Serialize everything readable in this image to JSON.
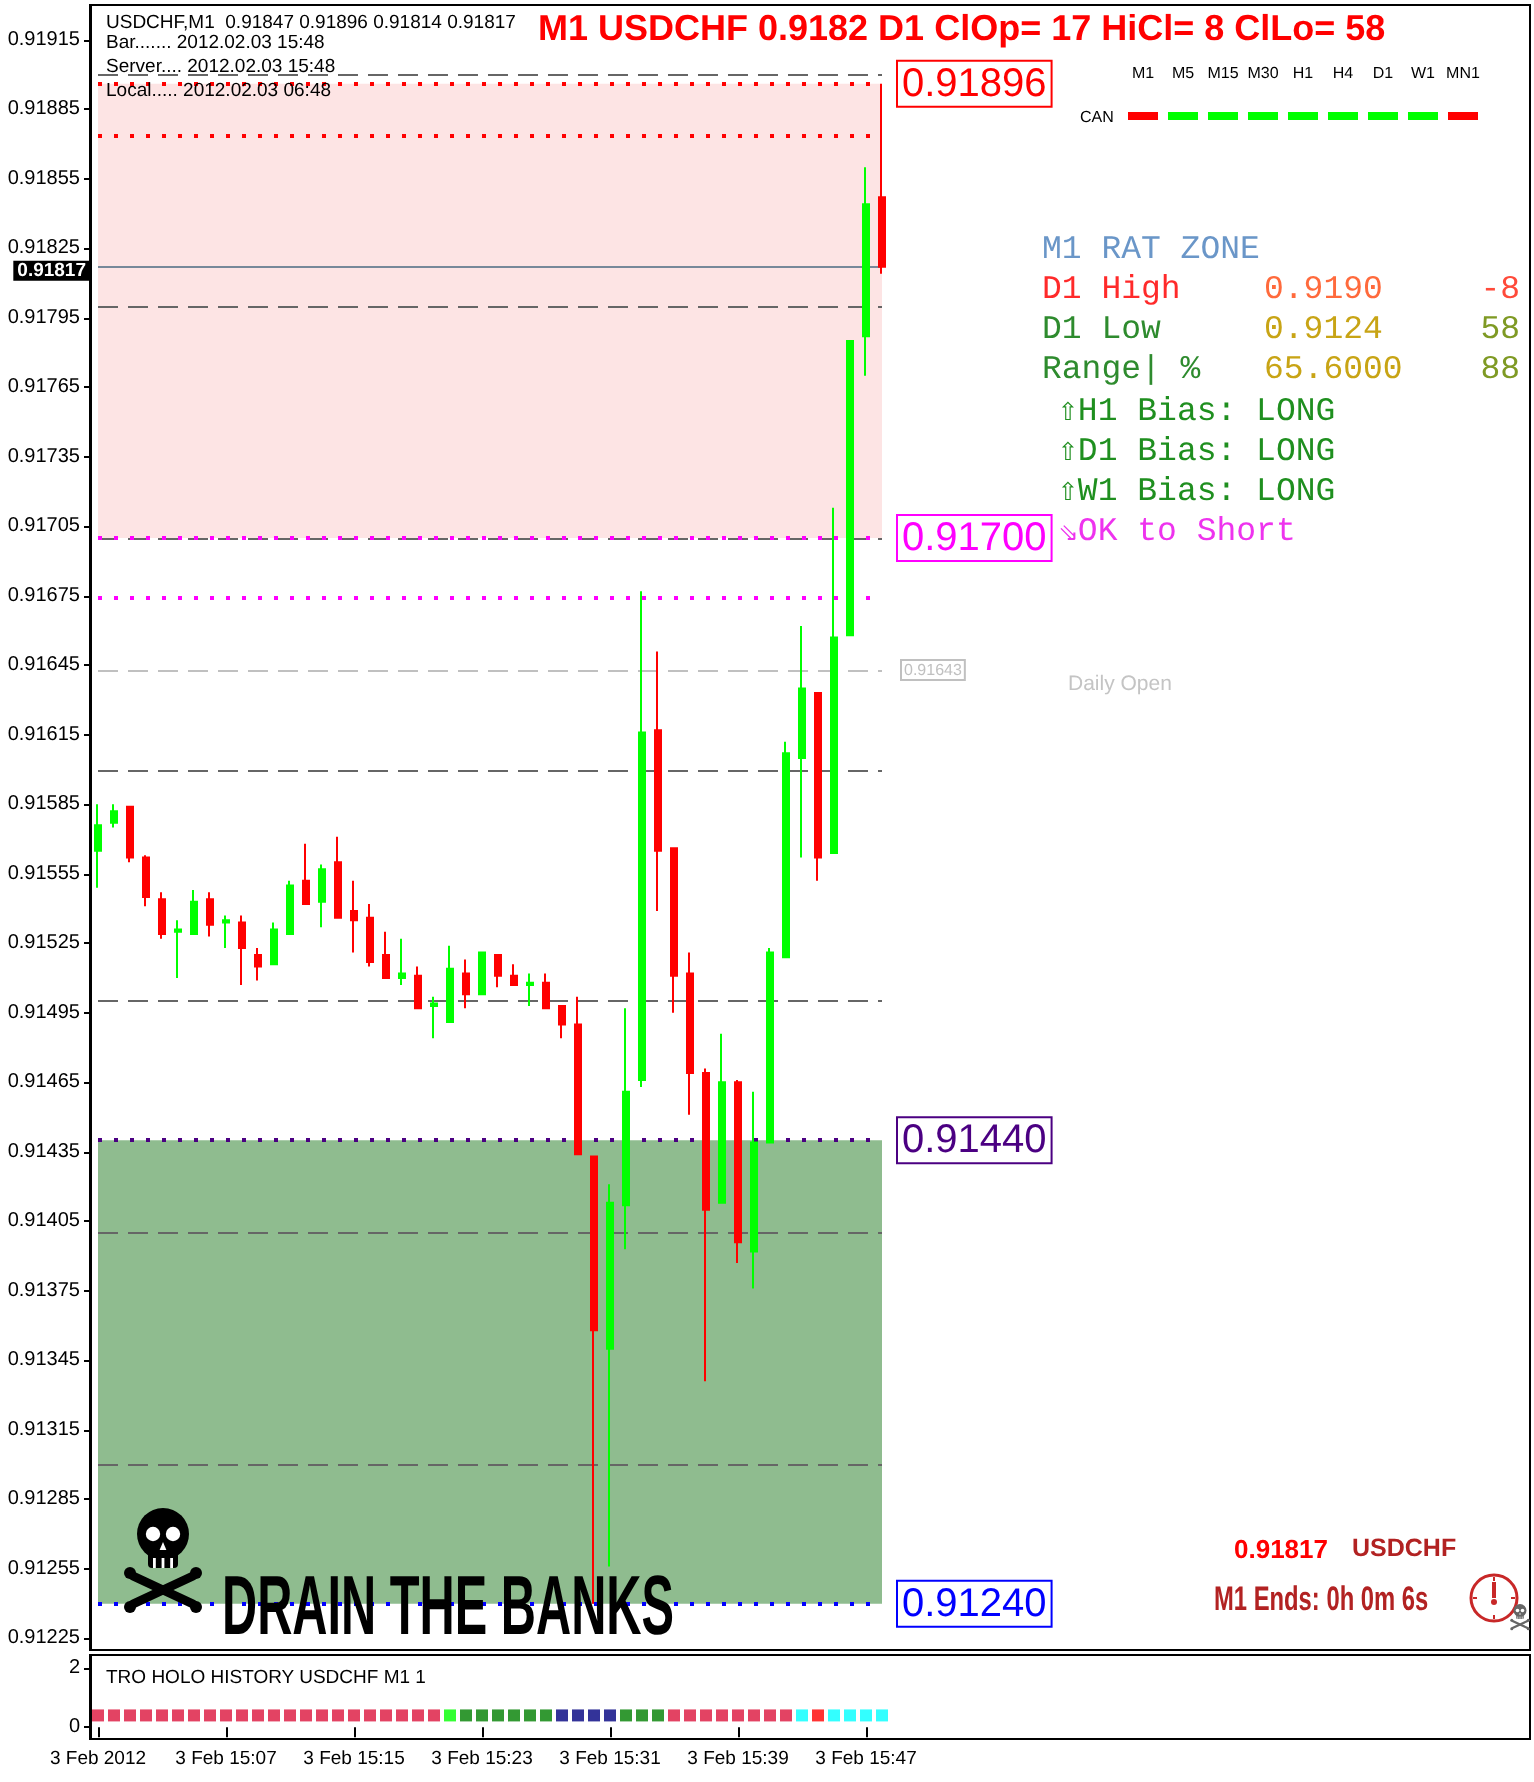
{
  "chart_data": [
    {
      "type": "candlestick",
      "title": "M1 USDCHF 0.9182 D1 ClOp= 17 HiCl= 8 ClLo= 58",
      "categories": [
        null,
        null,
        null,
        null,
        null,
        null,
        null,
        null,
        null,
        null,
        null,
        null,
        null,
        null,
        null,
        null,
        null,
        null,
        null,
        null,
        null,
        null,
        null,
        null,
        null,
        null,
        null,
        null,
        null,
        null,
        null,
        null,
        null,
        null,
        null,
        null,
        null,
        null,
        null,
        null,
        null,
        null,
        null,
        null,
        null,
        null,
        null,
        null,
        null,
        null
      ],
      "ohlc": [
        [
          0.91565,
          0.91585,
          0.91549,
          0.91576
        ],
        [
          0.91577,
          0.91585,
          0.91575,
          0.91582
        ],
        [
          0.91584,
          0.91584,
          0.9156,
          0.91562
        ],
        [
          0.91562,
          0.91563,
          0.91541,
          0.91545
        ],
        [
          0.91544,
          0.91547,
          0.91527,
          0.91529
        ],
        [
          0.9153,
          0.91535,
          0.9151,
          0.91531
        ],
        [
          0.91529,
          0.91548,
          0.91529,
          0.91543
        ],
        [
          0.91544,
          0.91547,
          0.91528,
          0.91533
        ],
        [
          0.91534,
          0.91537,
          0.91523,
          0.91535
        ],
        [
          0.91534,
          0.91537,
          0.91507,
          0.91523
        ],
        [
          0.9152,
          0.91523,
          0.91509,
          0.91515
        ],
        [
          0.91516,
          0.91534,
          0.91516,
          0.91531
        ],
        [
          0.91529,
          0.91552,
          0.91529,
          0.9155
        ],
        [
          0.91552,
          0.91568,
          0.91542,
          0.91542
        ],
        [
          0.91543,
          0.91559,
          0.91532,
          0.91557
        ],
        [
          0.9156,
          0.91571,
          0.91536,
          0.91536
        ],
        [
          0.91539,
          0.91552,
          0.91521,
          0.91535
        ],
        [
          0.91536,
          0.91542,
          0.91515,
          0.91517
        ],
        [
          0.9152,
          0.9153,
          0.9151,
          0.9151
        ],
        [
          0.9151,
          0.91527,
          0.91507,
          0.91512
        ],
        [
          0.91511,
          0.91515,
          0.91497,
          0.91497
        ],
        [
          0.91498,
          0.91502,
          0.91484,
          0.91499
        ],
        [
          0.91491,
          0.91524,
          0.91491,
          0.91514
        ],
        [
          0.91512,
          0.91518,
          0.91497,
          0.91503
        ],
        [
          0.91503,
          0.91521,
          0.91503,
          0.91521
        ],
        [
          0.9152,
          0.9152,
          0.91506,
          0.91511
        ],
        [
          0.91511,
          0.91516,
          0.91507,
          0.91507
        ],
        [
          0.91507,
          0.91512,
          0.91498,
          0.91508
        ],
        [
          0.91508,
          0.91512,
          0.91497,
          0.91497
        ],
        [
          0.91498,
          0.91498,
          0.91484,
          0.9149
        ],
        [
          0.9149,
          0.91502,
          0.91434,
          0.91434
        ],
        [
          0.91433,
          0.91433,
          0.9124,
          0.91358
        ],
        [
          0.9135,
          0.91421,
          0.91256,
          0.91413
        ],
        [
          0.91412,
          0.91497,
          0.91393,
          0.91461
        ],
        [
          0.91466,
          0.91677,
          0.91463,
          0.91616
        ],
        [
          0.91617,
          0.91651,
          0.91539,
          0.91565
        ],
        [
          0.91566,
          0.91566,
          0.91495,
          0.91511
        ],
        [
          0.91512,
          0.91521,
          0.91451,
          0.91469
        ],
        [
          0.91469,
          0.91471,
          0.91336,
          0.9141
        ],
        [
          0.91413,
          0.91486,
          0.91413,
          0.91465
        ],
        [
          0.91465,
          0.91466,
          0.91387,
          0.91396
        ],
        [
          0.91392,
          0.91461,
          0.91376,
          0.91439
        ],
        [
          0.91439,
          0.91523,
          0.91439,
          0.91521
        ],
        [
          0.91519,
          0.91612,
          0.91519,
          0.91607
        ],
        [
          0.91605,
          0.91662,
          0.91562,
          0.91635
        ],
        [
          0.91633,
          0.91633,
          0.91552,
          0.91562
        ],
        [
          0.91564,
          0.91713,
          0.91564,
          0.91657
        ],
        [
          0.91658,
          0.91785,
          0.91658,
          0.91785
        ],
        [
          0.91787,
          0.9186,
          0.9177,
          0.91844
        ],
        [
          0.91847,
          0.91896,
          0.91814,
          0.91817
        ]
      ],
      "colors": [
        "#00ff00",
        "#00ff00",
        "#ff0000",
        "#ff0000",
        "#ff0000",
        "#00ff00",
        "#00ff00",
        "#ff0000",
        "#00ff00",
        "#ff0000",
        "#ff0000",
        "#00ff00",
        "#00ff00",
        "#ff0000",
        "#00ff00",
        "#ff0000",
        "#ff0000",
        "#ff0000",
        "#ff0000",
        "#00ff00",
        "#ff0000",
        "#00ff00",
        "#00ff00",
        "#ff0000",
        "#00ff00",
        "#ff0000",
        "#ff0000",
        "#00ff00",
        "#ff0000",
        "#ff0000",
        "#ff0000",
        "#ff0000",
        "#00ff00",
        "#00ff00",
        "#00ff00",
        "#ff0000",
        "#ff0000",
        "#ff0000",
        "#ff0000",
        "#00ff00",
        "#ff0000",
        "#00ff00",
        "#00ff00",
        "#00ff00",
        "#00ff00",
        "#ff0000",
        "#00ff00",
        "#00ff00",
        "#00ff00",
        "#ff0000"
      ],
      "ylim": [
        0.9122,
        0.9193
      ],
      "yticks": [
        0.91225,
        0.91255,
        0.91285,
        0.91315,
        0.91345,
        0.91375,
        0.91405,
        0.91435,
        0.91465,
        0.91495,
        0.91525,
        0.91555,
        0.91585,
        0.91615,
        0.91645,
        0.91675,
        0.91705,
        0.91735,
        0.91765,
        0.91795,
        0.91825,
        0.91855,
        0.91885,
        0.91915
      ],
      "bands": [
        {
          "axis": "y",
          "from": 0.9124,
          "to": 0.9144,
          "color": "#8fbc8f"
        },
        {
          "axis": "y",
          "from": 0.917,
          "to": 0.91896,
          "color": "#fde4e4"
        }
      ],
      "ref_lines": [
        {
          "axis": "y",
          "value": 0.919,
          "color": "#666666",
          "line_style": "dashed"
        },
        {
          "axis": "y",
          "value": 0.918,
          "color": "#666666",
          "line_style": "dashed"
        },
        {
          "axis": "y",
          "value": 0.917,
          "color": "#666666",
          "line_style": "dashed"
        },
        {
          "axis": "y",
          "value": 0.916,
          "color": "#666666",
          "line_style": "dashed"
        },
        {
          "axis": "y",
          "value": 0.915,
          "color": "#666666",
          "line_style": "dashed"
        },
        {
          "axis": "y",
          "value": 0.914,
          "color": "#666666",
          "line_style": "dashed"
        },
        {
          "axis": "y",
          "value": 0.913,
          "color": "#666666",
          "line_style": "dashed"
        },
        {
          "axis": "y",
          "value": 0.91896,
          "label": "0.91896",
          "color": "#ff0000",
          "line_style": "dotted"
        },
        {
          "axis": "y",
          "value": 0.91874,
          "color": "#ff0000",
          "line_style": "dotted"
        },
        {
          "axis": "y",
          "value": 0.917,
          "label": "0.91700",
          "color": "#ff00ff",
          "line_style": "dotted"
        },
        {
          "axis": "y",
          "value": 0.91674,
          "color": "#ff00ff",
          "line_style": "dotted"
        },
        {
          "axis": "y",
          "value": 0.91643,
          "label": "0.91643",
          "color": "#c0c0c0",
          "line_style": "dashed"
        },
        {
          "axis": "y",
          "value": 0.9144,
          "label": "0.91440",
          "color": "#4b0082",
          "line_style": "dotted"
        },
        {
          "axis": "y",
          "value": 0.9124,
          "label": "0.91240",
          "color": "#0000ff",
          "line_style": "dotted"
        },
        {
          "axis": "y",
          "value": 0.91817,
          "label": "0.91817",
          "color": "#778899",
          "line_style": "solid"
        }
      ],
      "annotations": [
        "USDCHF,M1  0.91847 0.91896 0.91814 0.91817",
        "Bar....... 2012.02.03 15:48",
        "Server.... 2012.02.03 15:48",
        "Local..... 2012.02.03 06:48",
        "M1",
        "M5",
        "M15",
        "M30",
        "H1",
        "H4",
        "D1",
        "W1",
        "MN1",
        "CAN",
        "M1 RAT ZONE",
        "D1 High",
        "0.9190",
        "-8",
        "D1 Low",
        "0.9124",
        "58",
        "Range| %",
        "65.6000",
        "88",
        "⇧H1 Bias: LONG",
        "⇧D1 Bias: LONG",
        "⇧W1 Bias: LONG",
        "⇘OK to Short",
        "Daily Open",
        "DRAIN THE BANKS",
        "0.91817",
        "USDCHF",
        "M1 Ends: 0h 0m 6s"
      ]
    },
    {
      "type": "scatter",
      "title": "TRO HOLO HISTORY USDCHF M1 1",
      "categories": [
        "3 Feb 2012",
        null,
        null,
        null,
        null,
        null,
        null,
        null,
        "3 Feb 15:07",
        null,
        null,
        null,
        null,
        null,
        null,
        null,
        "3 Feb 15:15",
        null,
        null,
        null,
        null,
        null,
        null,
        null,
        "3 Feb 15:23",
        null,
        null,
        null,
        null,
        null,
        null,
        null,
        "3 Feb 15:31",
        null,
        null,
        null,
        null,
        null,
        null,
        null,
        "3 Feb 15:39",
        null,
        null,
        null,
        null,
        null,
        null,
        null,
        "3 Feb 15:47",
        null
      ],
      "values": [
        0.4,
        0.4,
        0.4,
        0.4,
        0.4,
        0.4,
        0.4,
        0.4,
        0.4,
        0.4,
        0.4,
        0.4,
        0.4,
        0.4,
        0.4,
        0.4,
        0.4,
        0.4,
        0.4,
        0.4,
        0.4,
        0.4,
        0.4,
        0.4,
        0.4,
        0.4,
        0.4,
        0.4,
        0.4,
        0.4,
        0.4,
        0.4,
        0.4,
        0.4,
        0.4,
        0.4,
        0.4,
        0.4,
        0.4,
        0.4,
        0.4,
        0.4,
        0.4,
        0.4,
        0.4,
        0.4,
        0.4,
        0.4,
        0.4,
        0.4
      ],
      "colors": [
        "#dc143c",
        "#dc143c",
        "#dc143c",
        "#dc143c",
        "#dc143c",
        "#dc143c",
        "#dc143c",
        "#dc143c",
        "#dc143c",
        "#dc143c",
        "#dc143c",
        "#dc143c",
        "#dc143c",
        "#dc143c",
        "#dc143c",
        "#dc143c",
        "#dc143c",
        "#dc143c",
        "#dc143c",
        "#dc143c",
        "#dc143c",
        "#dc143c",
        "#00ff00",
        "#008000",
        "#008000",
        "#008000",
        "#008000",
        "#008000",
        "#008000",
        "#000080",
        "#000080",
        "#000080",
        "#000080",
        "#008000",
        "#008000",
        "#008000",
        "#dc143c",
        "#dc143c",
        "#dc143c",
        "#dc143c",
        "#dc143c",
        "#dc143c",
        "#dc143c",
        "#dc143c",
        "#00ffff",
        "#ff0000",
        "#00ffff",
        "#00ffff",
        "#00ffff",
        "#00ffff"
      ],
      "marker": "square",
      "ylim": [
        -0.4,
        2.45
      ],
      "yticks": [
        0,
        2
      ]
    }
  ]
}
